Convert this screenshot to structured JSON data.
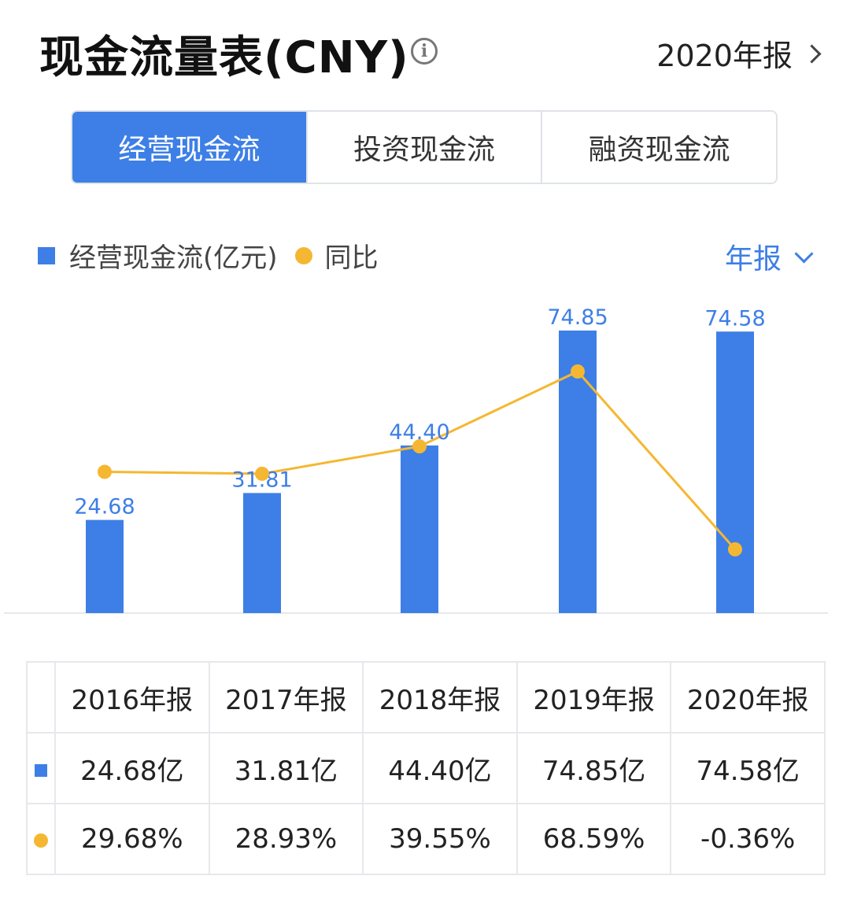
{
  "header": {
    "title": "现金流量表(CNY)",
    "info_icon": "info-icon",
    "period_label": "2020年报"
  },
  "tabs": [
    {
      "label": "经营现金流",
      "active": true
    },
    {
      "label": "投资现金流",
      "active": false
    },
    {
      "label": "融资现金流",
      "active": false
    }
  ],
  "legend": {
    "bar_label": "经营现金流(亿元)",
    "line_label": "同比",
    "frequency": "年报"
  },
  "colors": {
    "bar": "#3d7fe6",
    "line": "#f5b731",
    "positive": "#d94a4a",
    "negative": "#2f9e6a"
  },
  "chart_data": {
    "type": "bar",
    "categories": [
      "2016年报",
      "2017年报",
      "2018年报",
      "2019年报",
      "2020年报"
    ],
    "series": [
      {
        "name": "经营现金流(亿元)",
        "type": "bar",
        "values": [
          24.68,
          31.81,
          44.4,
          74.85,
          74.58
        ],
        "labels": [
          "24.68",
          "31.81",
          "44.40",
          "74.85",
          "74.58"
        ]
      },
      {
        "name": "同比",
        "type": "line",
        "values": [
          29.68,
          28.93,
          39.55,
          68.59,
          -0.36
        ]
      }
    ],
    "ylim": [
      0,
      74.85
    ],
    "grid": false,
    "legend_position": "top-left"
  },
  "table": {
    "headers": [
      "2016年报",
      "2017年报",
      "2018年报",
      "2019年报",
      "2020年报"
    ],
    "values": [
      "24.68亿",
      "31.81亿",
      "44.40亿",
      "74.85亿",
      "74.58亿"
    ],
    "yoy": [
      "29.68%",
      "28.93%",
      "39.55%",
      "68.59%",
      "-0.36%"
    ]
  }
}
